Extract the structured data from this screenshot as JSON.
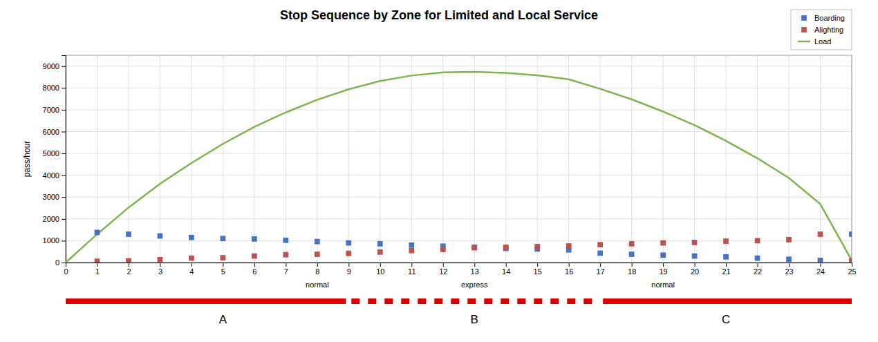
{
  "chart_data": {
    "type": "line",
    "title": "Stop Sequence by Zone for Limited and Local Service",
    "ylabel": "pass/hour",
    "x": [
      0,
      1,
      2,
      3,
      4,
      5,
      6,
      7,
      8,
      9,
      10,
      11,
      12,
      13,
      14,
      15,
      16,
      17,
      18,
      19,
      20,
      21,
      22,
      23,
      24,
      25
    ],
    "xlim": [
      0,
      25
    ],
    "xticks": [
      0,
      1,
      2,
      3,
      4,
      5,
      6,
      7,
      8,
      9,
      10,
      11,
      12,
      13,
      14,
      15,
      16,
      17,
      18,
      19,
      20,
      21,
      22,
      23,
      24,
      25
    ],
    "ylim": [
      0,
      9500
    ],
    "yticks": [
      0,
      1000,
      2000,
      3000,
      4000,
      5000,
      6000,
      7000,
      8000,
      9000
    ],
    "grid": true,
    "legend": "upper right",
    "series": [
      {
        "name": "Boarding",
        "type": "scatter",
        "marker": "square",
        "color": "#4472c4",
        "values": [
          null,
          1380,
          1300,
          1220,
          1150,
          1100,
          1080,
          1020,
          960,
          900,
          860,
          800,
          750,
          700,
          650,
          620,
          580,
          430,
          380,
          340,
          300,
          260,
          200,
          150,
          100,
          1300
        ]
      },
      {
        "name": "Alighting",
        "type": "scatter",
        "marker": "square",
        "color": "#c0504d",
        "values": [
          null,
          60,
          80,
          130,
          200,
          220,
          300,
          360,
          380,
          420,
          480,
          550,
          600,
          680,
          700,
          730,
          760,
          820,
          860,
          900,
          920,
          980,
          1000,
          1050,
          1300,
          80
        ]
      },
      {
        "name": "Load",
        "type": "line",
        "color": "#7ab648",
        "values": [
          0,
          1300,
          2520,
          3610,
          4560,
          5440,
          6220,
          6880,
          7460,
          7940,
          8320,
          8570,
          8720,
          8740,
          8690,
          8580,
          8400,
          7960,
          7480,
          6920,
          6300,
          5580,
          4780,
          3880,
          2680,
          100
        ]
      }
    ],
    "annotations": [
      {
        "text": "normal",
        "x": 8
      },
      {
        "text": "express",
        "x": 13
      },
      {
        "text": "normal",
        "x": 19
      }
    ],
    "zones": [
      {
        "name": "A",
        "start": 0,
        "end": 9,
        "label_x": 5,
        "line_style": "solid",
        "color": "#dd0000"
      },
      {
        "name": "B",
        "start": 9,
        "end": 17,
        "label_x": 13,
        "line_style": "dashed",
        "color": "#dd0000"
      },
      {
        "name": "C",
        "start": 17,
        "end": 25,
        "label_x": 21,
        "line_style": "solid",
        "color": "#dd0000"
      }
    ]
  }
}
